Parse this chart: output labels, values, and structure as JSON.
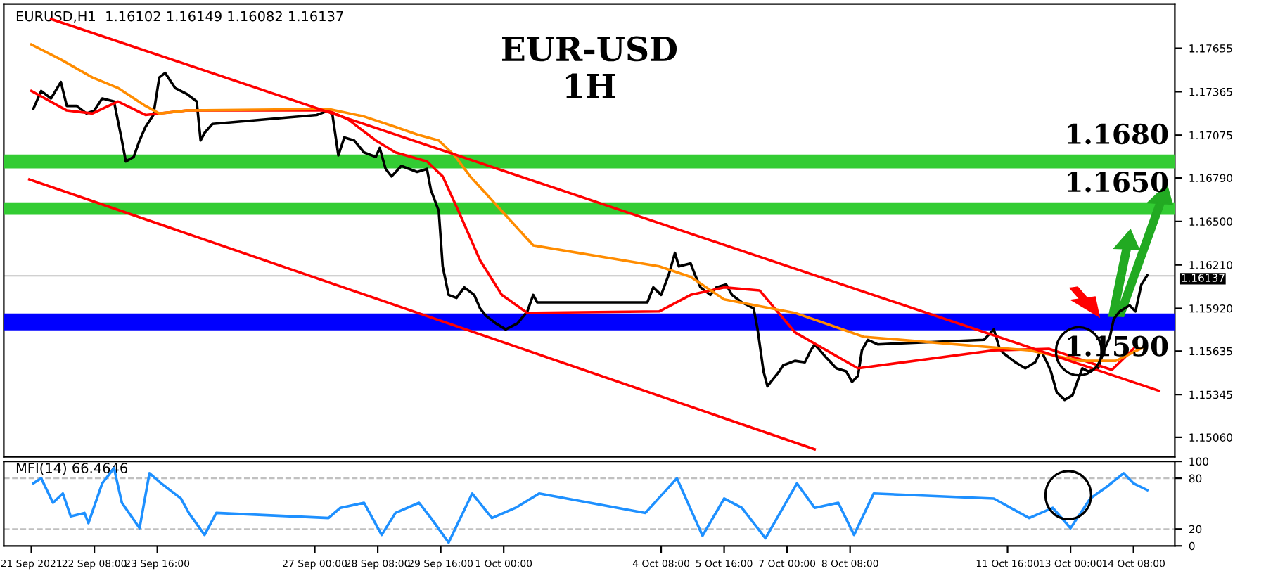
{
  "chart_data": [
    {
      "type": "line",
      "title": "EUR-USD\n1H",
      "annotations": [
        "EURUSD,H1  1.16102 1.16149 1.16082 1.16137"
      ],
      "series": [
        {
          "color": "#000000",
          "x": [
            "2021-09-21T01:00",
            "2021-09-21T05:00",
            "2021-09-21T10:00",
            "2021-09-21T15:00",
            "2021-09-21T18:00",
            "2021-09-21T23:00",
            "2021-09-22T04:00",
            "2021-09-22T08:00",
            "2021-09-22T12:00",
            "2021-09-22T18:00",
            "2021-09-22T22:00",
            "2021-09-23T00:00",
            "2021-09-23T04:00",
            "2021-09-23T07:00",
            "2021-09-23T10:00",
            "2021-09-23T14:00",
            "2021-09-23T17:00",
            "2021-09-23T20:00",
            "2021-09-24T01:00",
            "2021-09-24T07:00",
            "2021-09-24T12:00",
            "2021-09-24T14:00",
            "2021-09-24T16:00",
            "2021-09-24T20:00",
            "2021-09-27T01:00",
            "2021-09-27T07:00",
            "2021-09-27T09:00",
            "2021-09-27T12:00",
            "2021-09-27T15:00",
            "2021-09-27T20:00",
            "2021-09-28T01:00",
            "2021-09-28T07:00",
            "2021-09-28T09:00",
            "2021-09-28T12:00",
            "2021-09-28T15:00",
            "2021-09-28T20:00",
            "2021-09-29T04:00",
            "2021-09-29T09:00",
            "2021-09-29T11:00",
            "2021-09-29T15:00",
            "2021-09-29T17:00",
            "2021-09-29T20:00",
            "2021-09-30T00:00",
            "2021-09-30T04:00",
            "2021-09-30T09:00",
            "2021-09-30T12:00",
            "2021-09-30T15:00",
            "2021-09-30T20:00",
            "2021-10-01T01:00",
            "2021-10-01T07:00",
            "2021-10-01T12:00",
            "2021-10-01T15:00",
            "2021-10-01T17:00",
            "2021-10-04T01:00",
            "2021-10-04T04:00",
            "2021-10-04T08:00",
            "2021-10-04T12:00",
            "2021-10-04T15:00",
            "2021-10-04T17:00",
            "2021-10-04T23:00",
            "2021-10-05T01:00",
            "2021-10-05T04:00",
            "2021-10-05T09:00",
            "2021-10-05T12:00",
            "2021-10-05T17:00",
            "2021-10-05T20:00",
            "2021-10-06T01:00",
            "2021-10-06T07:00",
            "2021-10-06T09:00",
            "2021-10-06T12:00",
            "2021-10-06T14:00",
            "2021-10-06T17:00",
            "2021-10-06T20:00",
            "2021-10-06T22:00",
            "2021-10-07T04:00",
            "2021-10-07T09:00",
            "2021-10-07T12:00",
            "2021-10-07T14:00",
            "2021-10-07T20:00",
            "2021-10-08T01:00",
            "2021-10-08T06:00",
            "2021-10-08T09:00",
            "2021-10-08T12:00",
            "2021-10-08T14:00",
            "2021-10-08T17:00",
            "2021-10-08T22:00",
            "2021-10-11T04:00",
            "2021-10-11T09:00",
            "2021-10-11T12:00",
            "2021-10-11T14:00",
            "2021-10-11T20:00",
            "2021-10-12T01:00",
            "2021-10-12T06:00",
            "2021-10-12T09:00",
            "2021-10-12T12:00",
            "2021-10-12T14:00",
            "2021-10-12T17:00",
            "2021-10-12T21:00",
            "2021-10-13T01:00",
            "2021-10-13T04:00",
            "2021-10-13T06:00",
            "2021-10-13T09:00",
            "2021-10-13T14:00",
            "2021-10-13T17:00",
            "2021-10-13T20:00",
            "2021-10-13T22:00",
            "2021-10-14T01:00",
            "2021-10-14T06:00",
            "2021-10-14T09:00",
            "2021-10-14T12:00",
            "2021-10-14T15:00"
          ],
          "values": [
            1.1725,
            1.1737,
            1.1732,
            1.1743,
            1.1727,
            1.1727,
            1.1722,
            1.1724,
            1.1732,
            1.173,
            1.1704,
            1.169,
            1.1693,
            1.1704,
            1.1713,
            1.1721,
            1.1746,
            1.1749,
            1.1739,
            1.1735,
            1.173,
            1.1704,
            1.1709,
            1.1715,
            1.1721,
            1.1724,
            1.1721,
            1.1694,
            1.1706,
            1.1704,
            1.1696,
            1.1693,
            1.1699,
            1.1685,
            1.168,
            1.1687,
            1.1683,
            1.1685,
            1.1671,
            1.1657,
            1.162,
            1.1601,
            1.1599,
            1.1606,
            1.1601,
            1.1592,
            1.1587,
            1.1582,
            1.1578,
            1.1582,
            1.159,
            1.1601,
            1.1596,
            1.1596,
            1.1606,
            1.1601,
            1.1615,
            1.1629,
            1.162,
            1.1622,
            1.1615,
            1.1606,
            1.1601,
            1.1606,
            1.1608,
            1.1601,
            1.1596,
            1.1592,
            1.1578,
            1.155,
            1.154,
            1.1545,
            1.155,
            1.1554,
            1.1557,
            1.1556,
            1.1564,
            1.1568,
            1.1559,
            1.1552,
            1.155,
            1.1543,
            1.1547,
            1.1564,
            1.1571,
            1.1568,
            1.1571,
            1.1578,
            1.1565,
            1.1562,
            1.1556,
            1.1552,
            1.1556,
            1.1564,
            1.1556,
            1.155,
            1.1536,
            1.1531,
            1.1534,
            1.1545,
            1.1552,
            1.155,
            1.1552,
            1.1564,
            1.1573,
            1.1585,
            1.159,
            1.1594,
            1.159,
            1.1608,
            1.1614
          ]
        },
        {
          "color": "#ff0000",
          "x": [
            "2021-09-21T00:00",
            "2021-09-21T18:00",
            "2021-09-22T07:00",
            "2021-09-22T20:00",
            "2021-09-23T10:00",
            "2021-09-24T07:00",
            "2021-09-27T07:00",
            "2021-09-27T17:00",
            "2021-09-28T07:00",
            "2021-09-28T17:00",
            "2021-09-29T09:00",
            "2021-09-29T17:00",
            "2021-09-30T01:00",
            "2021-09-30T12:00",
            "2021-09-30T23:00",
            "2021-10-01T12:00",
            "2021-10-04T07:00",
            "2021-10-04T23:00",
            "2021-10-05T16:00",
            "2021-10-06T10:00",
            "2021-10-07T04:00",
            "2021-10-08T12:00",
            "2021-10-11T09:00",
            "2021-10-12T13:00",
            "2021-10-13T14:00",
            "2021-10-13T21:00",
            "2021-10-14T08:00"
          ],
          "values": [
            1.1737,
            1.1724,
            1.1722,
            1.173,
            1.1721,
            1.1724,
            1.1724,
            1.1718,
            1.1704,
            1.1696,
            1.169,
            1.168,
            1.1657,
            1.1624,
            1.1601,
            1.1589,
            1.159,
            1.1601,
            1.1606,
            1.1604,
            1.1576,
            1.1552,
            1.1564,
            1.1565,
            1.1554,
            1.1551,
            1.1565
          ]
        },
        {
          "color": "#ff8c00",
          "x": [
            "2021-09-21T00:00",
            "2021-09-21T15:00",
            "2021-09-22T07:00",
            "2021-09-22T20:00",
            "2021-09-23T10:00",
            "2021-09-23T17:00",
            "2021-09-24T07:00",
            "2021-09-27T07:00",
            "2021-09-28T01:00",
            "2021-09-28T17:00",
            "2021-09-29T04:00",
            "2021-09-29T15:00",
            "2021-09-29T23:00",
            "2021-09-30T07:00",
            "2021-09-30T23:00",
            "2021-10-01T15:00",
            "2021-10-04T07:00",
            "2021-10-04T23:00",
            "2021-10-05T16:00",
            "2021-10-07T04:00",
            "2021-10-08T15:00",
            "2021-10-12T03:00",
            "2021-10-13T05:00",
            "2021-10-13T23:00",
            "2021-10-14T13:00"
          ],
          "values": [
            1.1768,
            1.1758,
            1.1746,
            1.1739,
            1.1727,
            1.1722,
            1.1724,
            1.1725,
            1.172,
            1.1713,
            1.1708,
            1.1704,
            1.1694,
            1.168,
            1.1657,
            1.1634,
            1.162,
            1.1613,
            1.1598,
            1.1589,
            1.1573,
            1.1564,
            1.1557,
            1.1557,
            1.1566
          ]
        },
        {
          "color": "#ff0000",
          "x": [
            "2021-09-21T10:00",
            "2021-10-14T21:00"
          ],
          "values": [
            1.1785,
            1.1537
          ]
        },
        {
          "color": "#ff0000",
          "x": [
            "2021-09-20T23:00",
            "2021-10-07T14:00"
          ],
          "values": [
            1.1678,
            1.1498
          ]
        }
      ],
      "bands": [
        {
          "axis": "y",
          "from": 1.1686,
          "to": 1.1694,
          "color": "#33cc33",
          "label": "1.1680"
        },
        {
          "axis": "y",
          "from": 1.1655,
          "to": 1.1662,
          "color": "#33cc33",
          "label": "1.1650"
        },
        {
          "axis": "y",
          "from": 1.1578,
          "to": 1.1588,
          "color": "#0000ff",
          "label": "1.1590"
        }
      ],
      "ref_lines": [
        {
          "axis": "y",
          "value": 1.16137,
          "label": "1.16137",
          "color": "#c0c0c0"
        }
      ],
      "xlim": [
        "2021-09-20T10:00",
        "2021-10-15T05:00"
      ],
      "ylim": [
        1.1493,
        1.1795
      ],
      "yticks": [
        {
          "value": 1.17655,
          "label": "1.17655"
        },
        {
          "value": 1.17365,
          "label": "1.17365"
        },
        {
          "value": 1.17075,
          "label": "1.17075"
        },
        {
          "value": 1.1679,
          "label": "1.16790"
        },
        {
          "value": 1.165,
          "label": "1.16500"
        },
        {
          "value": 1.1621,
          "label": "1.16210"
        },
        {
          "value": 1.1592,
          "label": "1.15920"
        },
        {
          "value": 1.15635,
          "label": "1.15635"
        },
        {
          "value": 1.15345,
          "label": "1.15345"
        },
        {
          "value": 1.1506,
          "label": "1.15060"
        }
      ],
      "tick_labels": "y",
      "grid": false,
      "legend": false
    },
    {
      "type": "line",
      "annotations": [
        "MFI(14) 66.4646"
      ],
      "series": [
        {
          "color": "#1e90ff",
          "x": [
            "2021-09-21T01:00",
            "2021-09-21T05:00",
            "2021-09-21T11:00",
            "2021-09-21T16:00",
            "2021-09-21T20:00",
            "2021-09-22T03:00",
            "2021-09-22T05:00",
            "2021-09-22T12:00",
            "2021-09-22T18:00",
            "2021-09-22T22:00",
            "2021-09-23T07:00",
            "2021-09-23T12:00",
            "2021-09-23T18:00",
            "2021-09-24T04:00",
            "2021-09-24T08:00",
            "2021-09-24T16:00",
            "2021-09-24T22:00",
            "2021-09-27T07:00",
            "2021-09-27T13:00",
            "2021-09-28T01:00",
            "2021-09-28T10:00",
            "2021-09-28T17:00",
            "2021-09-29T05:00",
            "2021-09-29T11:00",
            "2021-09-29T20:00",
            "2021-09-30T08:00",
            "2021-09-30T18:00",
            "2021-10-01T06:00",
            "2021-10-01T18:00",
            "2021-10-04T00:00",
            "2021-10-04T16:00",
            "2021-10-05T05:00",
            "2021-10-05T16:00",
            "2021-10-06T01:00",
            "2021-10-06T13:00",
            "2021-10-07T05:00",
            "2021-10-07T14:00",
            "2021-10-08T02:00",
            "2021-10-08T10:00",
            "2021-10-08T20:00",
            "2021-10-11T09:00",
            "2021-10-12T03:00",
            "2021-10-12T15:00",
            "2021-10-13T00:00",
            "2021-10-13T10:00",
            "2021-10-13T19:00",
            "2021-10-14T03:00",
            "2021-10-14T08:00",
            "2021-10-14T15:00"
          ],
          "values": [
            74,
            80,
            51,
            62,
            35,
            39,
            27,
            74,
            92,
            51,
            21,
            86,
            74,
            56,
            39,
            13,
            39,
            33,
            45,
            51,
            13,
            39,
            51,
            33,
            4,
            62,
            33,
            45,
            62,
            39,
            80,
            12,
            56,
            45,
            9,
            74,
            45,
            51,
            13,
            62,
            56,
            33,
            45,
            21,
            56,
            71,
            86,
            74,
            66
          ]
        }
      ],
      "xlim": [
        "2021-09-20T10:00",
        "2021-10-15T05:00"
      ],
      "ylim": [
        0,
        100
      ],
      "xticks": [
        {
          "value": "2021-09-21T00:00",
          "label": "21 Sep 2021"
        },
        {
          "value": "2021-09-22T08:00",
          "label": "22 Sep 08:00"
        },
        {
          "value": "2021-09-23T16:00",
          "label": "23 Sep 16:00"
        },
        {
          "value": "2021-09-27T00:00",
          "label": "27 Sep 00:00"
        },
        {
          "value": "2021-09-28T08:00",
          "label": "28 Sep 08:00"
        },
        {
          "value": "2021-09-29T16:00",
          "label": "29 Sep 16:00"
        },
        {
          "value": "2021-10-01T00:00",
          "label": "1 Oct 00:00"
        },
        {
          "value": "2021-10-04T08:00",
          "label": "4 Oct 08:00"
        },
        {
          "value": "2021-10-05T16:00",
          "label": "5 Oct 16:00"
        },
        {
          "value": "2021-10-07T00:00",
          "label": "7 Oct 00:00"
        },
        {
          "value": "2021-10-08T08:00",
          "label": "8 Oct 08:00"
        },
        {
          "value": "2021-10-11T16:00",
          "label": "11 Oct 16:00"
        },
        {
          "value": "2021-10-13T00:00",
          "label": "13 Oct 00:00"
        },
        {
          "value": "2021-10-14T08:00",
          "label": "14 Oct 08:00"
        }
      ],
      "yticks": [
        0,
        20,
        80,
        100
      ],
      "ref_lines": [
        {
          "axis": "y",
          "value": 20,
          "color": "#c0c0c0",
          "line_style": "dashed"
        },
        {
          "axis": "y",
          "value": 80,
          "color": "#c0c0c0",
          "line_style": "dashed"
        }
      ],
      "grid": false,
      "legend": false
    }
  ]
}
